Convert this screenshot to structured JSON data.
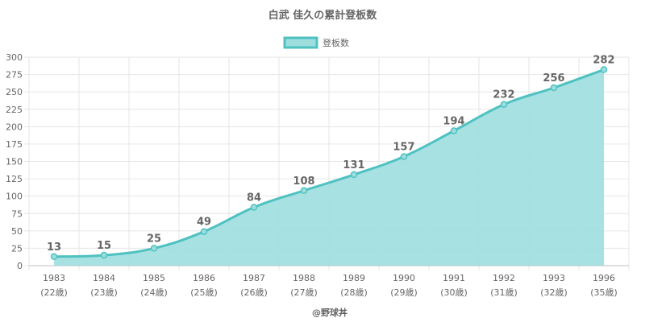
{
  "chart_data": {
    "type": "area",
    "title": "白武 佳久の累計登板数",
    "legend": {
      "position": "top",
      "entries": [
        "登板数"
      ]
    },
    "series": [
      {
        "name": "登板数",
        "values": [
          13,
          15,
          25,
          49,
          84,
          108,
          131,
          157,
          194,
          232,
          256,
          282
        ]
      }
    ],
    "categories": [
      "1983",
      "1984",
      "1985",
      "1986",
      "1987",
      "1988",
      "1989",
      "1990",
      "1991",
      "1992",
      "1993",
      "1996"
    ],
    "category_sublabels": [
      "(22歳)",
      "(23歳)",
      "(24歳)",
      "(25歳)",
      "(26歳)",
      "(27歳)",
      "(28歳)",
      "(29歳)",
      "(30歳)",
      "(31歳)",
      "(32歳)",
      "(35歳)"
    ],
    "ylim": [
      0,
      300
    ],
    "yticks": [
      "0",
      "25",
      "50",
      "75",
      "100",
      "125",
      "150",
      "175",
      "200",
      "225",
      "250",
      "275",
      "300"
    ],
    "grid": true,
    "credit": "@野球丼",
    "colors": {
      "line": "#4fc1c1",
      "fill": "#9edede",
      "grid": "#e6e6e6",
      "text": "#666666"
    }
  }
}
